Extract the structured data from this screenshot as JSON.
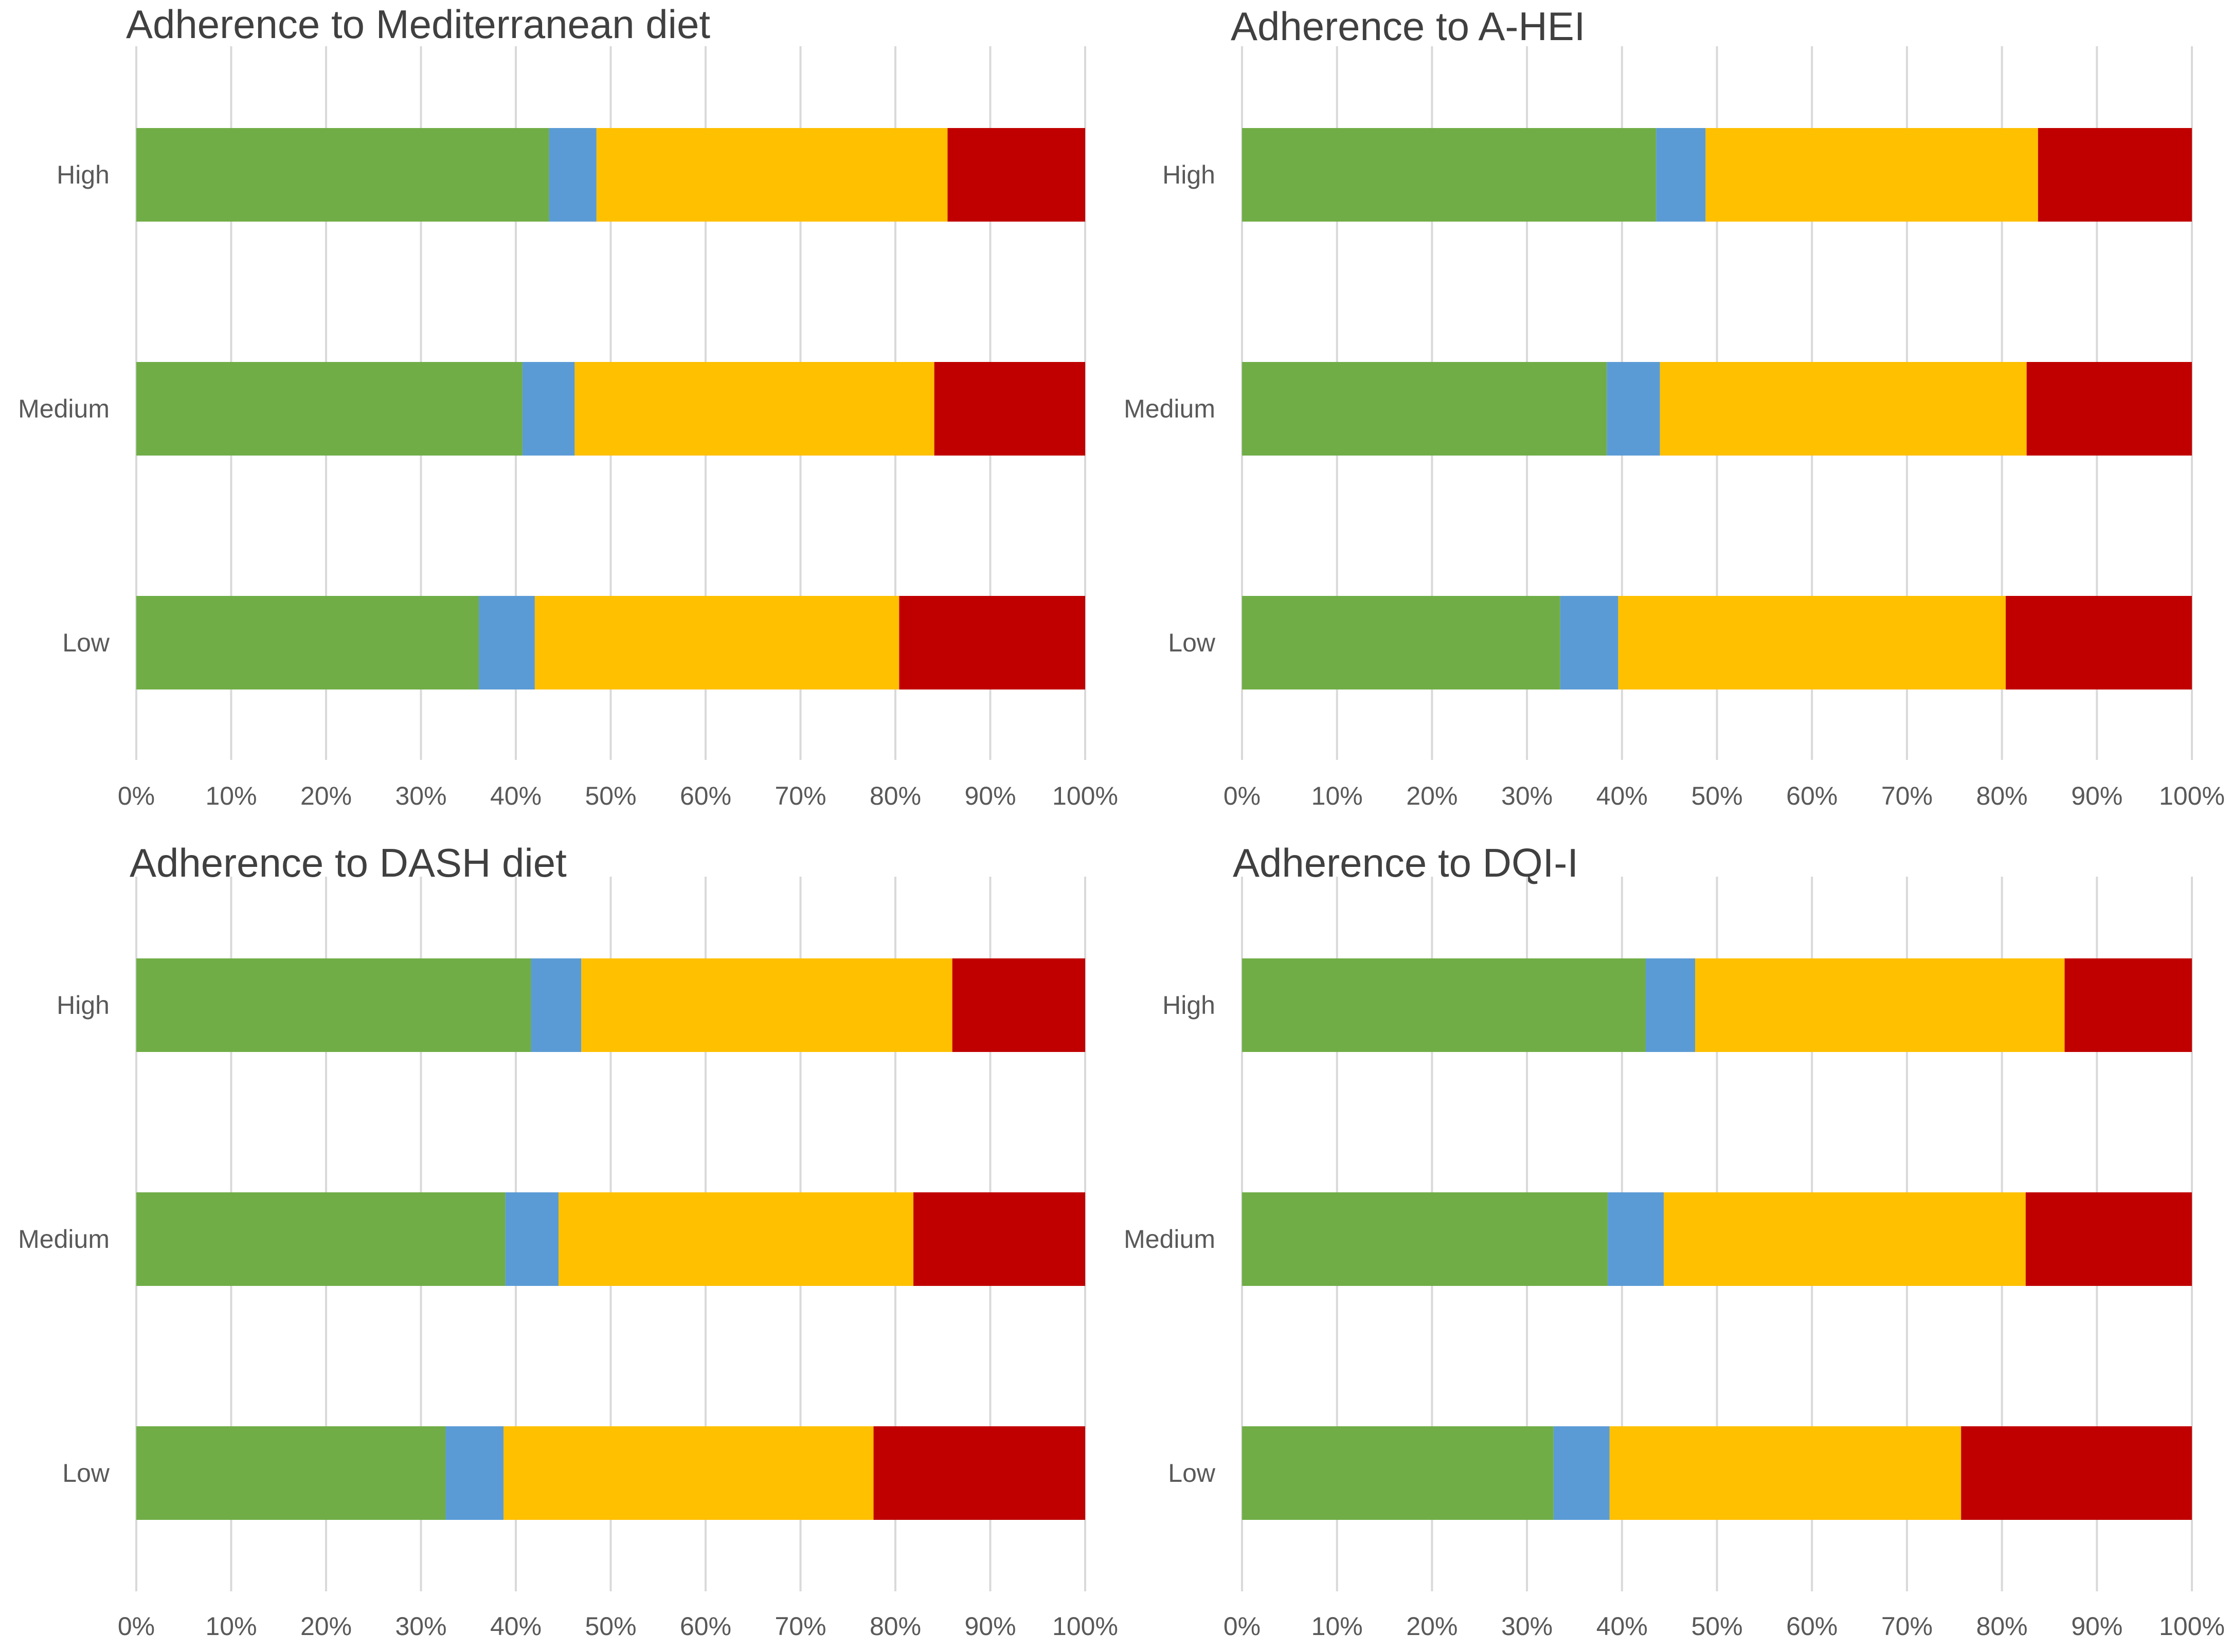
{
  "colors": [
    "#70AD47",
    "#5B9BD5",
    "#FFC000",
    "#C00000"
  ],
  "x_tick_labels": [
    "0%",
    "10%",
    "20%",
    "30%",
    "40%",
    "50%",
    "60%",
    "70%",
    "80%",
    "90%",
    "100%"
  ],
  "chart_data": [
    {
      "type": "bar",
      "orientation": "horizontal",
      "stacked": "100%",
      "title": "Adherence to Mediterranean diet",
      "categories": [
        "High",
        "Medium",
        "Low"
      ],
      "series": [
        {
          "name": "segment-1",
          "color": "#70AD47",
          "values": [
            43.5,
            40.7,
            36.1
          ]
        },
        {
          "name": "segment-2",
          "color": "#5B9BD5",
          "values": [
            5.0,
            5.5,
            5.9
          ]
        },
        {
          "name": "segment-3",
          "color": "#FFC000",
          "values": [
            37.0,
            37.9,
            38.4
          ]
        },
        {
          "name": "segment-4",
          "color": "#C00000",
          "values": [
            14.5,
            15.9,
            19.6
          ]
        }
      ],
      "xlim": [
        0,
        100
      ],
      "grid": true
    },
    {
      "type": "bar",
      "orientation": "horizontal",
      "stacked": "100%",
      "title": "Adherence to A-HEI",
      "categories": [
        "High",
        "Medium",
        "Low"
      ],
      "series": [
        {
          "name": "segment-1",
          "color": "#70AD47",
          "values": [
            43.6,
            38.4,
            33.5
          ]
        },
        {
          "name": "segment-2",
          "color": "#5B9BD5",
          "values": [
            5.2,
            5.6,
            6.1
          ]
        },
        {
          "name": "segment-3",
          "color": "#FFC000",
          "values": [
            35.0,
            38.6,
            40.8
          ]
        },
        {
          "name": "segment-4",
          "color": "#C00000",
          "values": [
            16.2,
            17.4,
            19.6
          ]
        }
      ],
      "xlim": [
        0,
        100
      ],
      "grid": true
    },
    {
      "type": "bar",
      "orientation": "horizontal",
      "stacked": "100%",
      "title": "Adherence to DASH diet",
      "categories": [
        "High",
        "Medium",
        "Low"
      ],
      "series": [
        {
          "name": "segment-1",
          "color": "#70AD47",
          "values": [
            41.6,
            38.9,
            32.6
          ]
        },
        {
          "name": "segment-2",
          "color": "#5B9BD5",
          "values": [
            5.3,
            5.6,
            6.1
          ]
        },
        {
          "name": "segment-3",
          "color": "#FFC000",
          "values": [
            39.1,
            37.4,
            39.0
          ]
        },
        {
          "name": "segment-4",
          "color": "#C00000",
          "values": [
            14.0,
            18.1,
            22.3
          ]
        }
      ],
      "xlim": [
        0,
        100
      ],
      "grid": true
    },
    {
      "type": "bar",
      "orientation": "horizontal",
      "stacked": "100%",
      "title": "Adherence to DQI-I",
      "categories": [
        "High",
        "Medium",
        "Low"
      ],
      "series": [
        {
          "name": "segment-1",
          "color": "#70AD47",
          "values": [
            42.5,
            38.5,
            32.8
          ]
        },
        {
          "name": "segment-2",
          "color": "#5B9BD5",
          "values": [
            5.2,
            5.9,
            5.9
          ]
        },
        {
          "name": "segment-3",
          "color": "#FFC000",
          "values": [
            38.9,
            38.1,
            37.0
          ]
        },
        {
          "name": "segment-4",
          "color": "#C00000",
          "values": [
            13.4,
            17.5,
            24.3
          ]
        }
      ],
      "xlim": [
        0,
        100
      ],
      "grid": true
    }
  ]
}
